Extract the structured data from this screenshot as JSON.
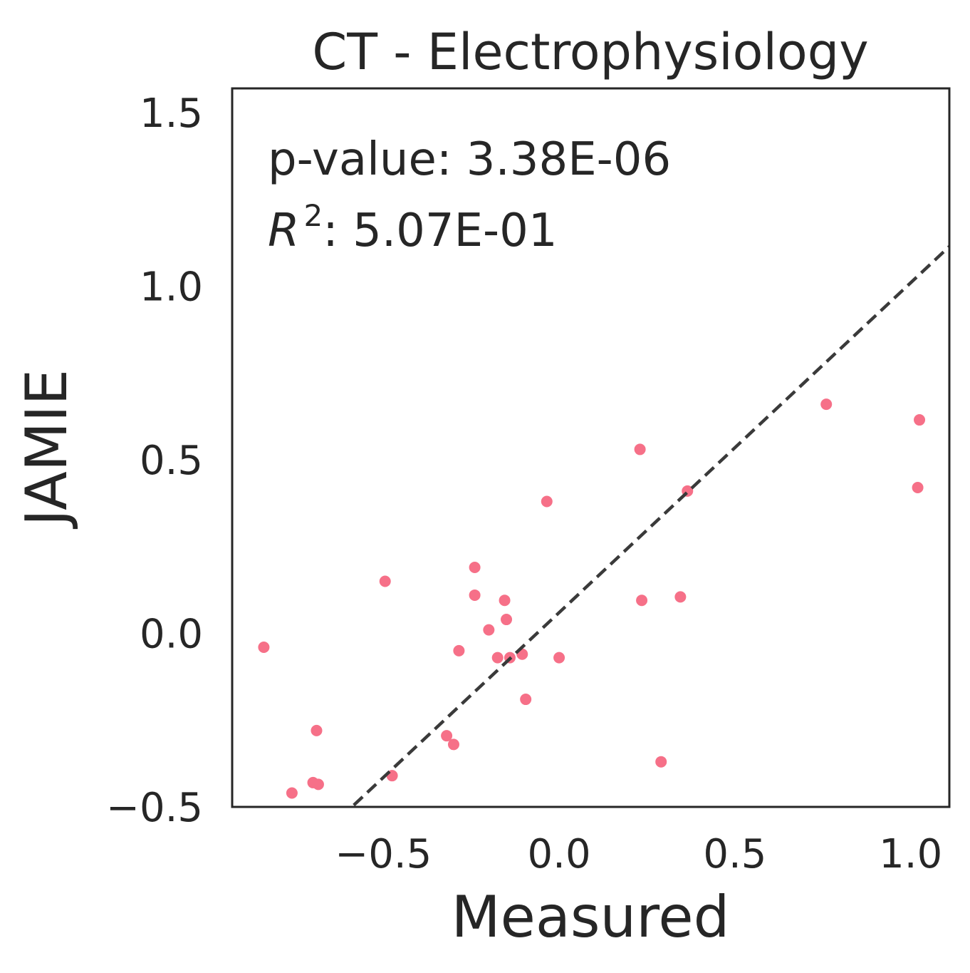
{
  "chart_data": {
    "type": "scatter",
    "title": "CT - Electrophysiology",
    "xlabel": "Measured",
    "ylabel": "JAMIE",
    "xlim": [
      -0.93,
      1.11
    ],
    "ylim": [
      -0.5,
      1.57
    ],
    "xticks": [
      -0.5,
      0.0,
      0.5,
      1.0
    ],
    "xtick_labels": [
      "−0.5",
      "0.0",
      "0.5",
      "1.0"
    ],
    "yticks": [
      -0.5,
      0.0,
      0.5,
      1.0,
      1.5
    ],
    "ytick_labels": [
      "−0.5",
      "0.0",
      "0.5",
      "1.0",
      "1.5"
    ],
    "grid": false,
    "annotations": {
      "pvalue_label": "p-value: 3.38E-06",
      "r2_symbol": "R",
      "r2_exponent": "2",
      "r2_value": ": 5.07E-01"
    },
    "fit_line": {
      "style": "dashed",
      "color": "#3a3a3a",
      "slope": 0.95,
      "intercept": 0.06
    },
    "point_color": "#f67088",
    "points": [
      {
        "x": -0.84,
        "y": -0.04
      },
      {
        "x": -0.76,
        "y": -0.46
      },
      {
        "x": -0.7,
        "y": -0.43
      },
      {
        "x": -0.685,
        "y": -0.435
      },
      {
        "x": -0.69,
        "y": -0.28
      },
      {
        "x": -0.495,
        "y": 0.15
      },
      {
        "x": -0.475,
        "y": -0.41
      },
      {
        "x": -0.32,
        "y": -0.295
      },
      {
        "x": -0.3,
        "y": -0.32
      },
      {
        "x": -0.285,
        "y": -0.05
      },
      {
        "x": -0.24,
        "y": 0.19
      },
      {
        "x": -0.24,
        "y": 0.11
      },
      {
        "x": -0.2,
        "y": 0.01
      },
      {
        "x": -0.175,
        "y": -0.07
      },
      {
        "x": -0.155,
        "y": 0.095
      },
      {
        "x": -0.15,
        "y": 0.04
      },
      {
        "x": -0.14,
        "y": -0.07
      },
      {
        "x": -0.105,
        "y": -0.06
      },
      {
        "x": -0.095,
        "y": -0.19
      },
      {
        "x": -0.035,
        "y": 0.38
      },
      {
        "x": 0.0,
        "y": -0.07
      },
      {
        "x": 0.23,
        "y": 0.53
      },
      {
        "x": 0.235,
        "y": 0.095
      },
      {
        "x": 0.29,
        "y": -0.37
      },
      {
        "x": 0.345,
        "y": 0.105
      },
      {
        "x": 0.365,
        "y": 0.41
      },
      {
        "x": 0.76,
        "y": 0.66
      },
      {
        "x": 1.02,
        "y": 0.42
      },
      {
        "x": 1.025,
        "y": 0.615
      }
    ]
  }
}
